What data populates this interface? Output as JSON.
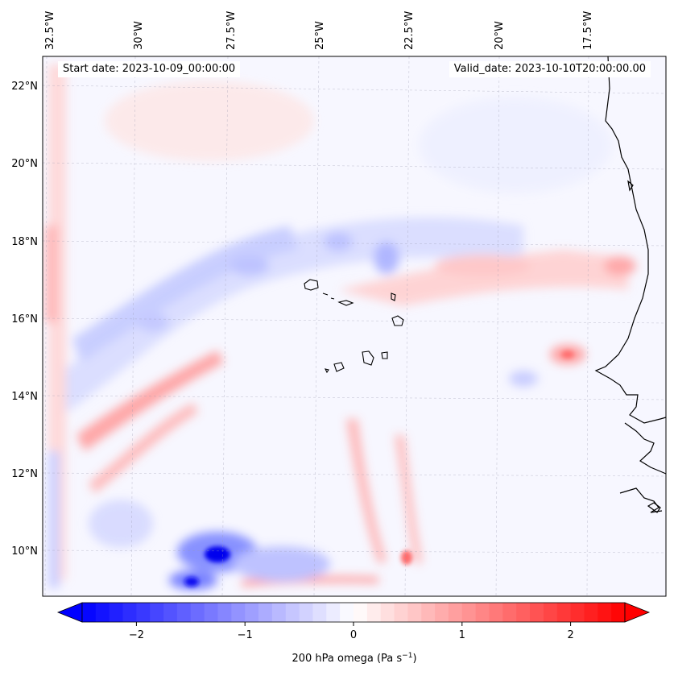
{
  "chart_data": {
    "type": "heatmap",
    "field": "200 hPa omega",
    "start_date_label": "Start date: 2023-10-09_00:00:00",
    "valid_date_label": "Valid_date: 2023-10-10T20:00:00.00",
    "lon_ticks": [
      {
        "value": -32.5,
        "label": "32.5°W"
      },
      {
        "value": -30.0,
        "label": "30°W"
      },
      {
        "value": -27.5,
        "label": "27.5°W"
      },
      {
        "value": -25.0,
        "label": "25°W"
      },
      {
        "value": -22.5,
        "label": "22.5°W"
      },
      {
        "value": -20.0,
        "label": "20°W"
      },
      {
        "value": -17.5,
        "label": "17.5°W"
      }
    ],
    "lat_ticks": [
      {
        "value": 22,
        "label": "22°N"
      },
      {
        "value": 20,
        "label": "20°N"
      },
      {
        "value": 18,
        "label": "18°N"
      },
      {
        "value": 16,
        "label": "16°N"
      },
      {
        "value": 14,
        "label": "14°N"
      },
      {
        "value": 12,
        "label": "12°N"
      },
      {
        "value": 10,
        "label": "10°N"
      }
    ],
    "colorbar": {
      "range": [
        -2.6,
        2.6
      ],
      "ticks": [
        {
          "value": -2,
          "label": "−2"
        },
        {
          "value": -1,
          "label": "−1"
        },
        {
          "value": 0,
          "label": "0"
        },
        {
          "value": 1,
          "label": "1"
        },
        {
          "value": 2,
          "label": "2"
        }
      ],
      "colors": [
        "#0000ff",
        "#ffffff",
        "#ff0000"
      ],
      "extend": "both",
      "label_main": "200 hPa omega (Pa s",
      "label_sup": "−1",
      "label_end": ")"
    },
    "features": [
      {
        "name": "strong-ascent-core",
        "value": -2.3
      },
      {
        "name": "subsidence-band",
        "value": 1.2
      },
      {
        "name": "ascent-band",
        "value": -0.8
      },
      {
        "name": "subsidence-patch",
        "value": 1.0
      }
    ]
  }
}
